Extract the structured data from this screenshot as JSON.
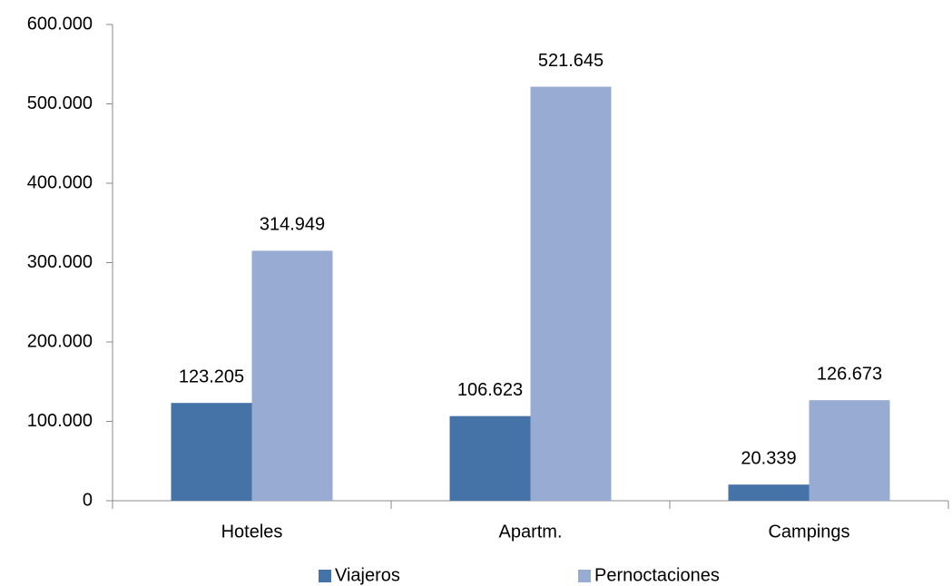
{
  "chart_data": {
    "type": "bar",
    "categories": [
      "Hoteles",
      "Apartm.",
      "Campings"
    ],
    "series": [
      {
        "name": "Viajeros",
        "color": "#4573a7",
        "values": [
          123205,
          106623,
          20339
        ],
        "value_labels": [
          "123.205",
          "106.623",
          "20.339"
        ]
      },
      {
        "name": "Pernoctaciones",
        "color": "#98abd3",
        "values": [
          314949,
          521645,
          126673
        ],
        "value_labels": [
          "314.949",
          "521.645",
          "126.673"
        ]
      }
    ],
    "ylim": [
      0,
      600000
    ],
    "yticks": [
      0,
      {
        "value": 100000,
        "label": "100.000"
      },
      {
        "value": 200000,
        "label": "200.000"
      },
      {
        "value": 300000,
        "label": "300.000"
      },
      {
        "value": 400000,
        "label": "400.000"
      },
      {
        "value": 500000,
        "label": "500.000"
      },
      {
        "value": 600000,
        "label": "600.000"
      }
    ],
    "grid": false,
    "legend": "bottom"
  }
}
